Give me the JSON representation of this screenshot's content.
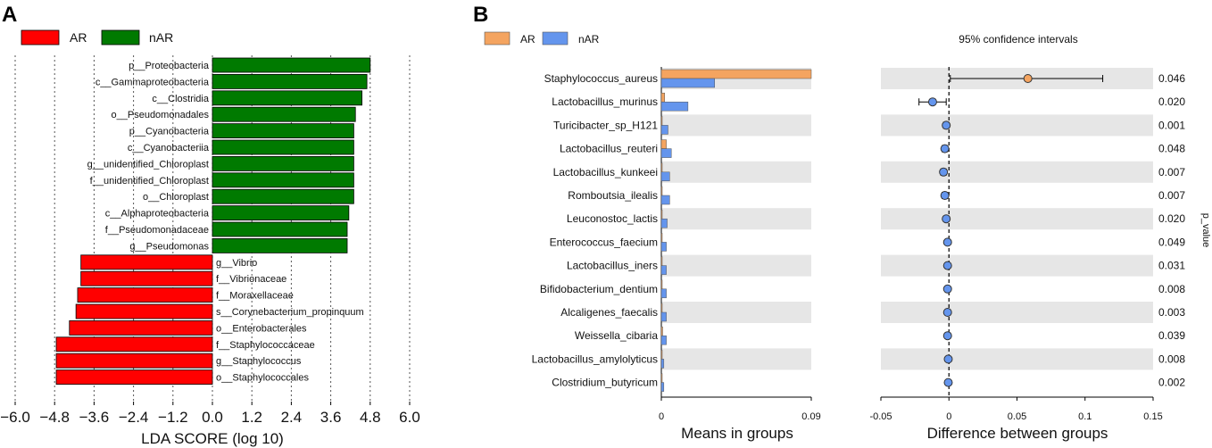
{
  "panels": {
    "a": "A",
    "b": "B"
  },
  "colors": {
    "ar_a": "#ff0000",
    "nar_a": "#007a00",
    "ar_b": "#f4a460",
    "nar_b": "#6495ed",
    "band": "#e6e6e6"
  },
  "chart_data": [
    {
      "type": "bar",
      "orientation": "horizontal",
      "panel": "A",
      "legend": [
        "AR",
        "nAR"
      ],
      "xlabel": "LDA SCORE (log 10)",
      "xlim": [
        -6.0,
        6.0
      ],
      "xticks": [
        -6.0,
        -4.8,
        -3.6,
        -2.4,
        -1.2,
        0.0,
        1.2,
        2.4,
        3.6,
        4.8,
        6.0
      ],
      "xtick_labels": [
        "−6.0",
        "−4.8",
        "−3.6",
        "−2.4",
        "−1.2",
        "0.0",
        "1.2",
        "2.4",
        "3.6",
        "4.8",
        "6.0"
      ],
      "grid": "vertical dotted at ticks",
      "categories": [
        "p__Proteobacteria",
        "c__Gammaproteobacteria",
        "c__Clostridia",
        "o__Pseudomonadales",
        "p__Cyanobacteria",
        "c__Cyanobacteriia",
        "g__unidentified_Chloroplast",
        "f__unidentified_Chloroplast",
        "o__Chloroplast",
        "c__Alphaproteobacteria",
        "f__Pseudomonadaceae",
        "g__Pseudomonas",
        "g__Vibrio",
        "f__Vibrionaceae",
        "f__Moraxellaceae",
        "s__Corynebacterium_propinquum",
        "o__Enterobacterales",
        "f__Staphylococcaceae",
        "g__Staphylococcus",
        "o__Staphylococcales"
      ],
      "values": [
        4.8,
        4.7,
        4.55,
        4.35,
        4.3,
        4.3,
        4.3,
        4.3,
        4.3,
        4.15,
        4.1,
        4.1,
        -4.0,
        -4.0,
        -4.1,
        -4.15,
        -4.35,
        -4.75,
        -4.75,
        -4.75
      ],
      "groups": [
        "nAR",
        "nAR",
        "nAR",
        "nAR",
        "nAR",
        "nAR",
        "nAR",
        "nAR",
        "nAR",
        "nAR",
        "nAR",
        "nAR",
        "AR",
        "AR",
        "AR",
        "AR",
        "AR",
        "AR",
        "AR",
        "AR"
      ]
    },
    {
      "type": "bar",
      "orientation": "horizontal",
      "panel": "B-left",
      "legend": [
        "AR",
        "nAR"
      ],
      "xlabel": "Means in groups",
      "xlim": [
        0,
        0.09
      ],
      "xticks": [
        0,
        0.09
      ],
      "xtick_labels": [
        "0",
        "0.09"
      ],
      "categories": [
        "Staphylococcus_aureus",
        "Lactobacillus_murinus",
        "Turicibacter_sp_H121",
        "Lactobacillus_reuteri",
        "Lactobacillus_kunkeei",
        "Romboutsia_ilealis",
        "Leuconostoc_lactis",
        "Enterococcus_faecium",
        "Lactobacillus_iners",
        "Bifidobacterium_dentium",
        "Alcaligenes_faecalis",
        "Weissella_cibaria",
        "Lactobacillus_amylolyticus",
        "Clostridium_butyricum"
      ],
      "series": [
        {
          "name": "AR",
          "values": [
            0.09,
            0.002,
            0.0005,
            0.003,
            0.0005,
            0.0005,
            0.0005,
            0.0005,
            0.0005,
            0.0005,
            0.0005,
            0.0008,
            0.0005,
            0.0005
          ]
        },
        {
          "name": "nAR",
          "values": [
            0.032,
            0.016,
            0.004,
            0.006,
            0.005,
            0.005,
            0.0035,
            0.003,
            0.003,
            0.003,
            0.003,
            0.003,
            0.0015,
            0.0015
          ]
        }
      ]
    },
    {
      "type": "scatter",
      "panel": "B-right",
      "title": "95% confidence intervals",
      "xlabel": "Difference between groups",
      "ylabel": "p_value",
      "xlim": [
        -0.05,
        0.15
      ],
      "xticks": [
        -0.05,
        0,
        0.05,
        0.1,
        0.15
      ],
      "xtick_labels": [
        "-0.05",
        "0",
        "0.05",
        "0.1",
        "0.15"
      ],
      "reference_line": 0,
      "categories": [
        "Staphylococcus_aureus",
        "Lactobacillus_murinus",
        "Turicibacter_sp_H121",
        "Lactobacillus_reuteri",
        "Lactobacillus_kunkeei",
        "Romboutsia_ilealis",
        "Leuconostoc_lactis",
        "Enterococcus_faecium",
        "Lactobacillus_iners",
        "Bifidobacterium_dentium",
        "Alcaligenes_faecalis",
        "Weissella_cibaria",
        "Lactobacillus_amylolyticus",
        "Clostridium_butyricum"
      ],
      "diff": [
        0.058,
        -0.012,
        -0.002,
        -0.003,
        -0.004,
        -0.003,
        -0.002,
        -0.001,
        -0.001,
        -0.001,
        -0.001,
        -0.001,
        -0.0005,
        -0.0005
      ],
      "ci_low": [
        0.001,
        -0.022,
        -0.004,
        -0.005,
        -0.006,
        -0.005,
        -0.003,
        -0.002,
        -0.002,
        -0.002,
        -0.002,
        -0.002,
        -0.001,
        -0.001
      ],
      "ci_high": [
        0.113,
        -0.002,
        0.0,
        -0.001,
        -0.002,
        -0.001,
        -0.001,
        0.0,
        0.0,
        0.0,
        0.0,
        0.0,
        0.0,
        0.0
      ],
      "favors": [
        "AR",
        "nAR",
        "nAR",
        "nAR",
        "nAR",
        "nAR",
        "nAR",
        "nAR",
        "nAR",
        "nAR",
        "nAR",
        "nAR",
        "nAR",
        "nAR"
      ],
      "p_values": [
        "0.046",
        "0.020",
        "0.001",
        "0.048",
        "0.007",
        "0.007",
        "0.020",
        "0.049",
        "0.031",
        "0.008",
        "0.003",
        "0.039",
        "0.008",
        "0.002"
      ]
    }
  ]
}
